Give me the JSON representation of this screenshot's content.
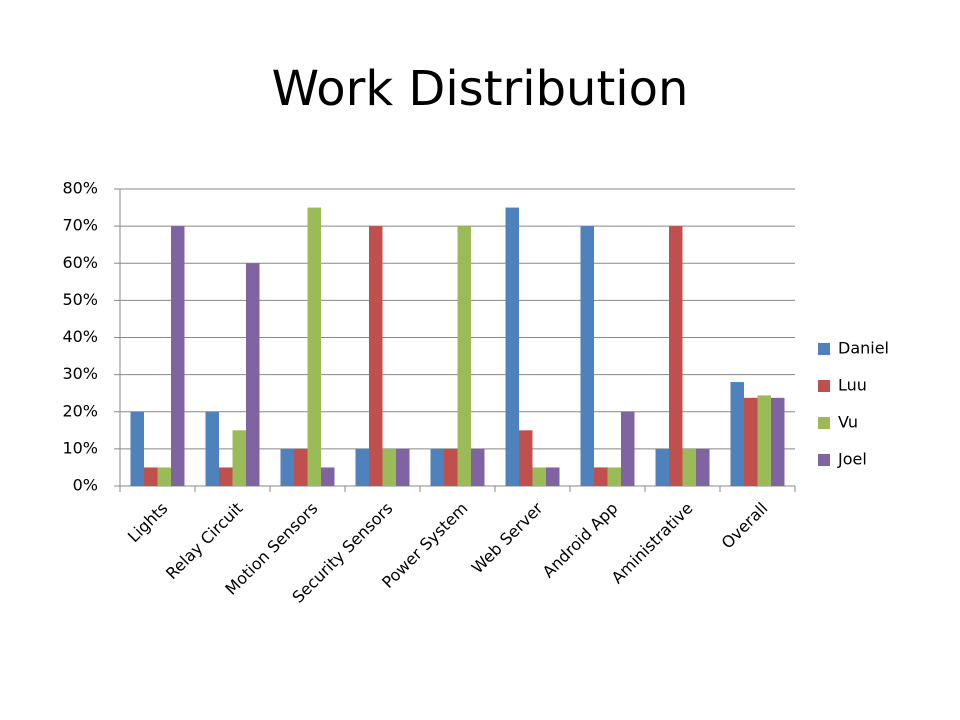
{
  "chart_data": {
    "type": "bar",
    "title": "Work Distribution",
    "categories": [
      "Lights",
      "Relay Circuit",
      "Motion Sensors",
      "Security Sensors",
      "Power System",
      "Web Server",
      "Android App",
      "Aministrative",
      "Overall"
    ],
    "series": [
      {
        "name": "Daniel",
        "color": "#4f81bd",
        "values": [
          20,
          20,
          10,
          10,
          10,
          75,
          70,
          10,
          28
        ]
      },
      {
        "name": "Luu",
        "color": "#c0504d",
        "values": [
          5,
          5,
          10,
          70,
          10,
          15,
          5,
          70,
          23.75
        ]
      },
      {
        "name": "Vu",
        "color": "#9bbb59",
        "values": [
          5,
          15,
          75,
          10,
          70,
          5,
          5,
          10,
          24.4
        ]
      },
      {
        "name": "Joel",
        "color": "#8064a2",
        "values": [
          70,
          60,
          5,
          10,
          10,
          5,
          20,
          10,
          23.75
        ]
      }
    ],
    "ylim": [
      0,
      80
    ],
    "yticks": [
      {
        "value": 0,
        "label": "0%"
      },
      {
        "value": 10,
        "label": "10%"
      },
      {
        "value": 20,
        "label": "20%"
      },
      {
        "value": 30,
        "label": "30%"
      },
      {
        "value": 40,
        "label": "40%"
      },
      {
        "value": 50,
        "label": "50%"
      },
      {
        "value": 60,
        "label": "60%"
      },
      {
        "value": 70,
        "label": "70%"
      },
      {
        "value": 80,
        "label": "80%"
      }
    ],
    "grid": true,
    "legend": "right"
  }
}
